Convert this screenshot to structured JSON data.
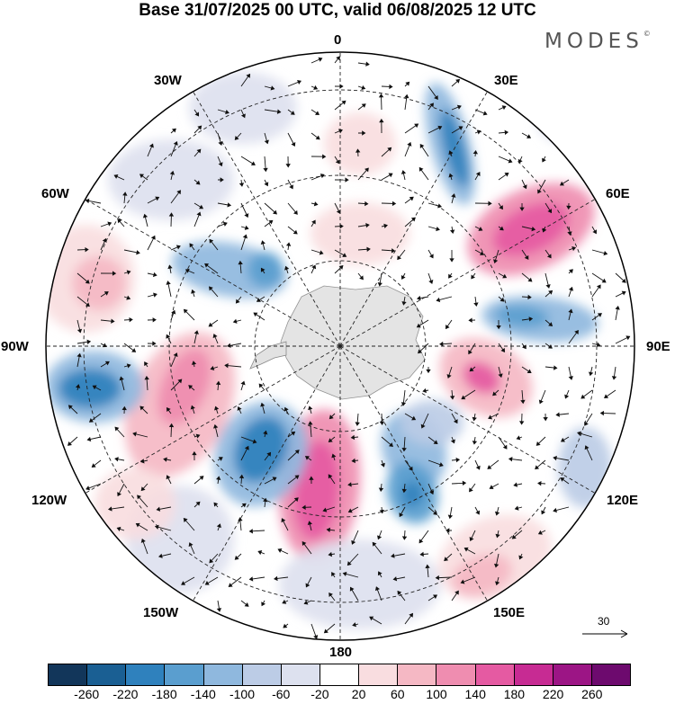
{
  "title": "Base 31/07/2025 00 UTC, valid 06/08/2025 12 UTC",
  "brand": "MODES",
  "brand_mark": "©",
  "longitude_labels": {
    "top": "0",
    "top_left": "30W",
    "top_right": "30E",
    "upper_left": "60W",
    "upper_right": "60E",
    "left": "90W",
    "right": "90E",
    "lower_left": "120W",
    "lower_right": "120E",
    "bottom_left": "150W",
    "bottom_right": "150E",
    "bottom": "180"
  },
  "vector_reference": "30",
  "colorbar": {
    "colors": [
      "#12365a",
      "#1a5f93",
      "#2f81bd",
      "#5a9ecf",
      "#8fb8de",
      "#bccce6",
      "#dde1ef",
      "#ffffff",
      "#f9dde0",
      "#f5b8c4",
      "#ef8db0",
      "#e55aa2",
      "#c72b93",
      "#9c1585",
      "#6d0a6e"
    ],
    "tick_labels": [
      "-260",
      "-220",
      "-180",
      "-140",
      "-100",
      "-60",
      "-20",
      "20",
      "60",
      "100",
      "140",
      "180",
      "220",
      "260"
    ]
  },
  "icons": {
    "antarctica": "antarctica-landmass-icon",
    "vector_arrow": "reference-vector-arrow-icon"
  }
}
